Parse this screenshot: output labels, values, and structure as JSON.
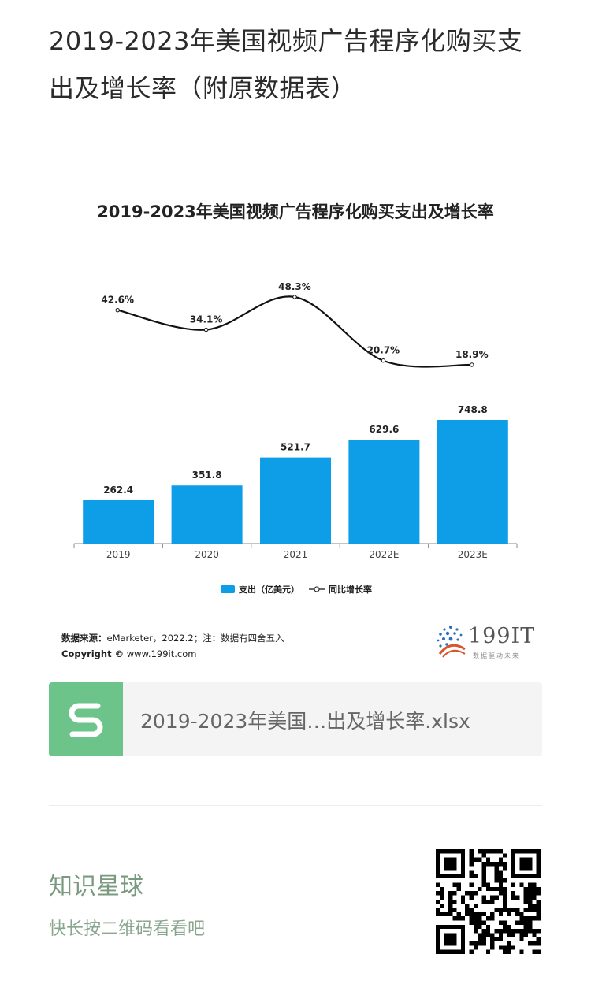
{
  "page": {
    "title": "2019-2023年美国视频广告程序化购买支出及增长率（附原数据表）"
  },
  "chart_data": {
    "type": "bar+line",
    "title": "2019-2023年美国视频广告程序化购买支出及增长率",
    "categories": [
      "2019",
      "2020",
      "2021",
      "2022E",
      "2023E"
    ],
    "series": [
      {
        "name": "支出（亿美元）",
        "type": "bar",
        "values": [
          262.4,
          351.8,
          521.7,
          629.6,
          748.8
        ],
        "labels": [
          "262.4",
          "351.8",
          "521.7",
          "629.6",
          "748.8"
        ],
        "color": "#0e9ee8"
      },
      {
        "name": "同比增长率",
        "type": "line",
        "values": [
          42.6,
          34.1,
          48.3,
          20.7,
          18.9
        ],
        "labels": [
          "42.6%",
          "34.1%",
          "48.3%",
          "20.7%",
          "18.9%"
        ],
        "color": "#111111"
      }
    ],
    "legend": "bottom-center",
    "grid": false
  },
  "source": {
    "label": "数据来源：",
    "text": "eMarketer，2022.2；注：数据有四舍五入",
    "copyright_label": "Copyright ©",
    "copyright_text": "www.199it.com"
  },
  "logo": {
    "text": "199IT",
    "subtitle": "数据驱动未来"
  },
  "file": {
    "icon": "spreadsheet-s-icon",
    "name": "2019-2023年美国…出及增长率.xlsx"
  },
  "planet": {
    "title": "知识星球",
    "subtitle": "快长按二维码看看吧"
  },
  "qr": {
    "icon": "qr-code-icon"
  }
}
